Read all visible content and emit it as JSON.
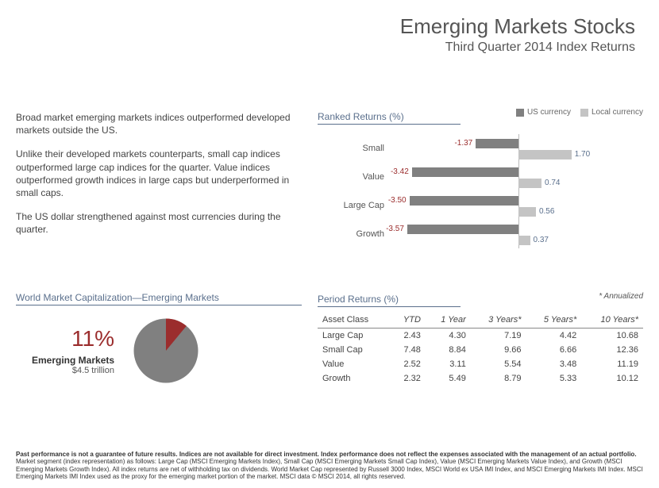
{
  "header": {
    "title": "Emerging Markets Stocks",
    "subtitle": "Third Quarter 2014 Index Returns"
  },
  "left_text": {
    "p1": "Broad market emerging markets indices outperformed developed markets outside the US.",
    "p2": "Unlike their developed markets counterparts, small cap indices outperformed large cap indices for the quarter. Value indices outperformed growth indices in large caps but underperformed in small caps.",
    "p3": "The US dollar strengthened against most currencies during the quarter."
  },
  "ranked": {
    "title": "Ranked Returns (%)",
    "legend": {
      "us": {
        "label": "US currency",
        "color": "#808080"
      },
      "local": {
        "label": "Local currency",
        "color": "#c4c4c4"
      }
    },
    "domain_min": -4.0,
    "domain_max": 4.0,
    "rows": [
      {
        "label": "Small",
        "us": -1.37,
        "local": 1.7
      },
      {
        "label": "Value",
        "us": -3.42,
        "local": 0.74
      },
      {
        "label": "Large Cap",
        "us": -3.5,
        "local": 0.56
      },
      {
        "label": "Growth",
        "us": -3.57,
        "local": 0.37
      }
    ]
  },
  "worldcap": {
    "title": "World Market Capitalization—Emerging Markets",
    "percent": "11%",
    "label": "Emerging Markets",
    "amount": "$4.5 trillion",
    "pie": {
      "slice_percent": 11,
      "slice_color": "#9b2d2d",
      "rest_color": "#808080",
      "bg": "#ffffff"
    }
  },
  "period": {
    "title": "Period Returns (%)",
    "annualized_note": "* Annualized",
    "columns": [
      "Asset Class",
      "YTD",
      "1 Year",
      "3 Years*",
      "5 Years*",
      "10 Years*"
    ],
    "rows": [
      {
        "label": "Large Cap",
        "vals": [
          "2.43",
          "4.30",
          "7.19",
          "4.42",
          "10.68"
        ]
      },
      {
        "label": "Small Cap",
        "vals": [
          "7.48",
          "8.84",
          "9.66",
          "6.66",
          "12.36"
        ]
      },
      {
        "label": "Value",
        "vals": [
          "2.52",
          "3.11",
          "5.54",
          "3.48",
          "11.19"
        ]
      },
      {
        "label": "Growth",
        "vals": [
          "2.32",
          "5.49",
          "8.79",
          "5.33",
          "10.12"
        ]
      }
    ]
  },
  "footnote": {
    "bold": "Past performance is not a guarantee of future results. Indices are not available for direct investment. Index performance does not reflect the expenses associated with the management of an actual portfolio.",
    "rest": " Market segment (index representation) as follows: Large Cap (MSCI Emerging Markets Index), Small Cap (MSCI Emerging Markets Small Cap Index), Value (MSCI Emerging Markets Value Index), and Growth (MSCI Emerging Markets Growth Index). All index returns are net of withholding tax on dividends. World Market Cap represented by Russell 3000 Index, MSCI World ex USA IMI Index, and MSCI Emerging Markets IMI Index. MSCI Emerging Markets IMI Index used as the proxy for the emerging market portion of the market. MSCI data © MSCI 2014, all rights reserved."
  }
}
